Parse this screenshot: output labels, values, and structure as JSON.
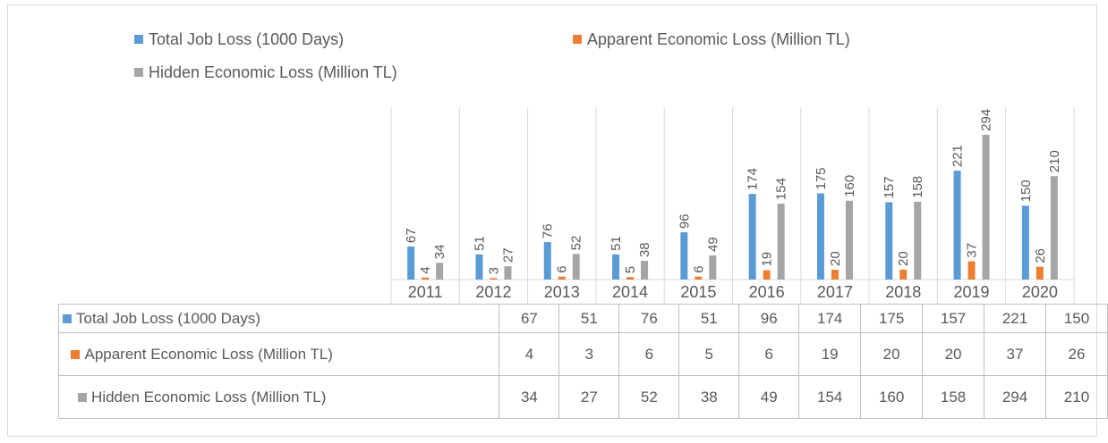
{
  "chart_data": {
    "type": "bar",
    "categories": [
      "2011",
      "2012",
      "2013",
      "2014",
      "2015",
      "2016",
      "2017",
      "2018",
      "2019",
      "2020"
    ],
    "series": [
      {
        "name": "Total Job Loss (1000 Days)",
        "color": "#5b9bd5",
        "values": [
          67,
          51,
          76,
          51,
          96,
          174,
          175,
          157,
          221,
          150
        ]
      },
      {
        "name": "Apparent Economic Loss (Million TL)",
        "color": "#ed7d31",
        "values": [
          4,
          3,
          6,
          5,
          6,
          19,
          20,
          20,
          37,
          26
        ]
      },
      {
        "name": "Hidden Economic Loss (Million TL)",
        "color": "#a5a5a5",
        "values": [
          34,
          27,
          52,
          38,
          49,
          154,
          160,
          158,
          294,
          210
        ]
      }
    ],
    "ylim": [
      0,
      350
    ],
    "legend": "top",
    "data_table": true
  }
}
